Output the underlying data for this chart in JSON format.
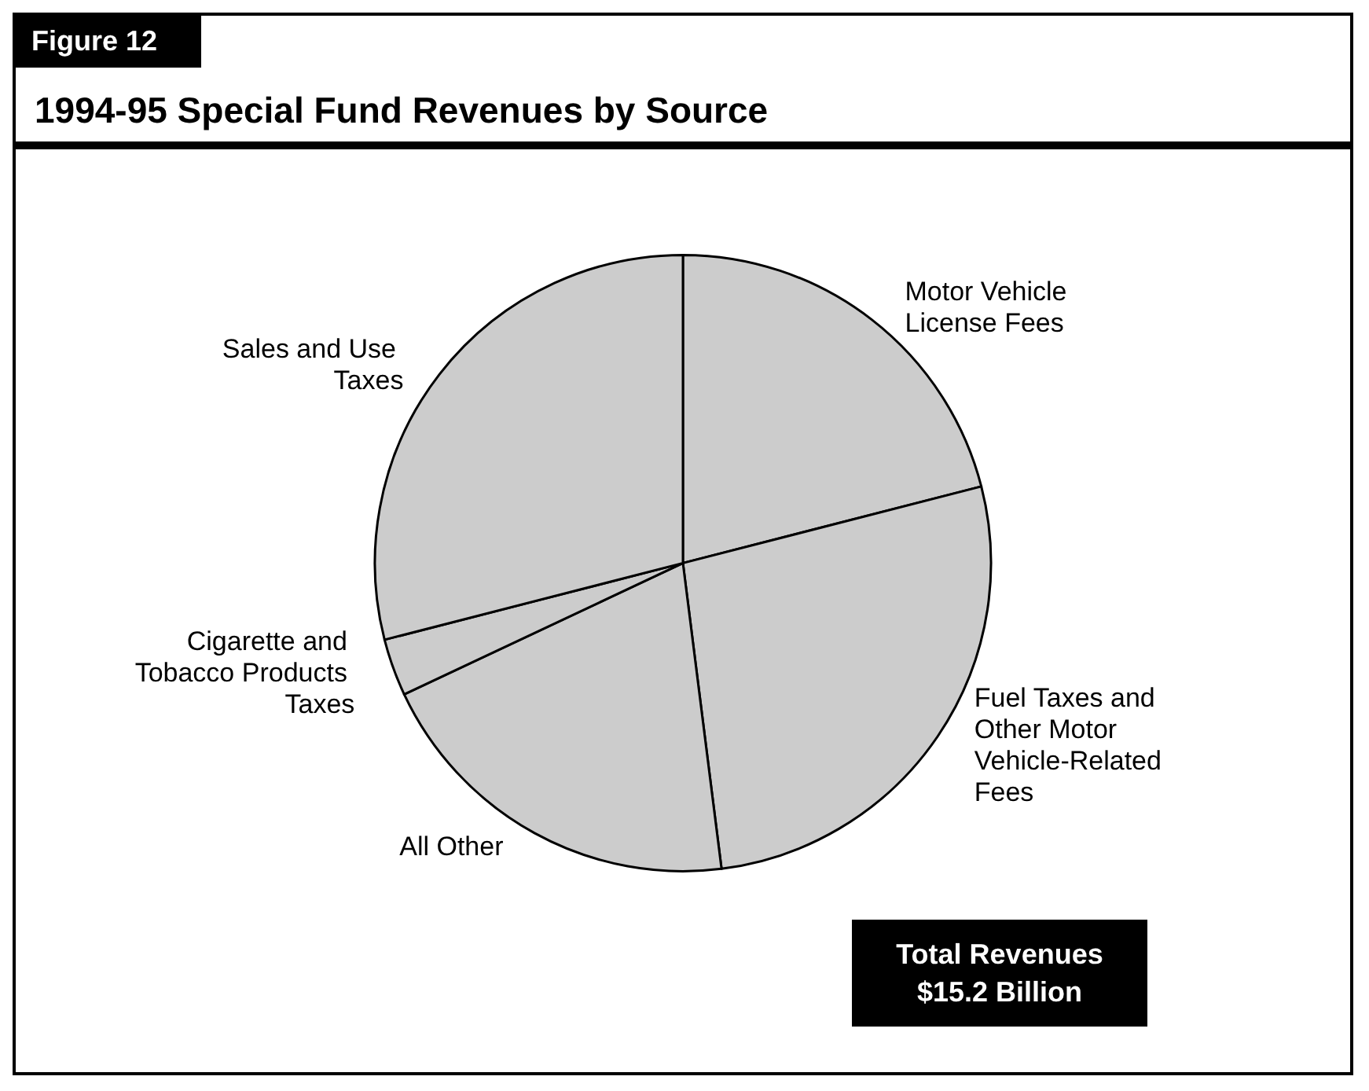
{
  "chart_data": {
    "type": "pie",
    "title": "1994-95 Special Fund Revenues by Source",
    "subtitle": "Figure 12",
    "categories": [
      "Motor Vehicle License Fees",
      "Fuel Taxes and Other Motor Vehicle-Related Fees",
      "All Other",
      "Cigarette and Tobacco Products Taxes",
      "Sales and Use Taxes"
    ],
    "values": [
      21,
      27,
      20,
      3,
      29
    ],
    "colors": [
      "#cccccc",
      "#cccccc",
      "#cccccc",
      "#cccccc",
      "#cccccc"
    ],
    "annotations": [
      "Total Revenues\n$15.2 Billion"
    ],
    "legend": false
  }
}
